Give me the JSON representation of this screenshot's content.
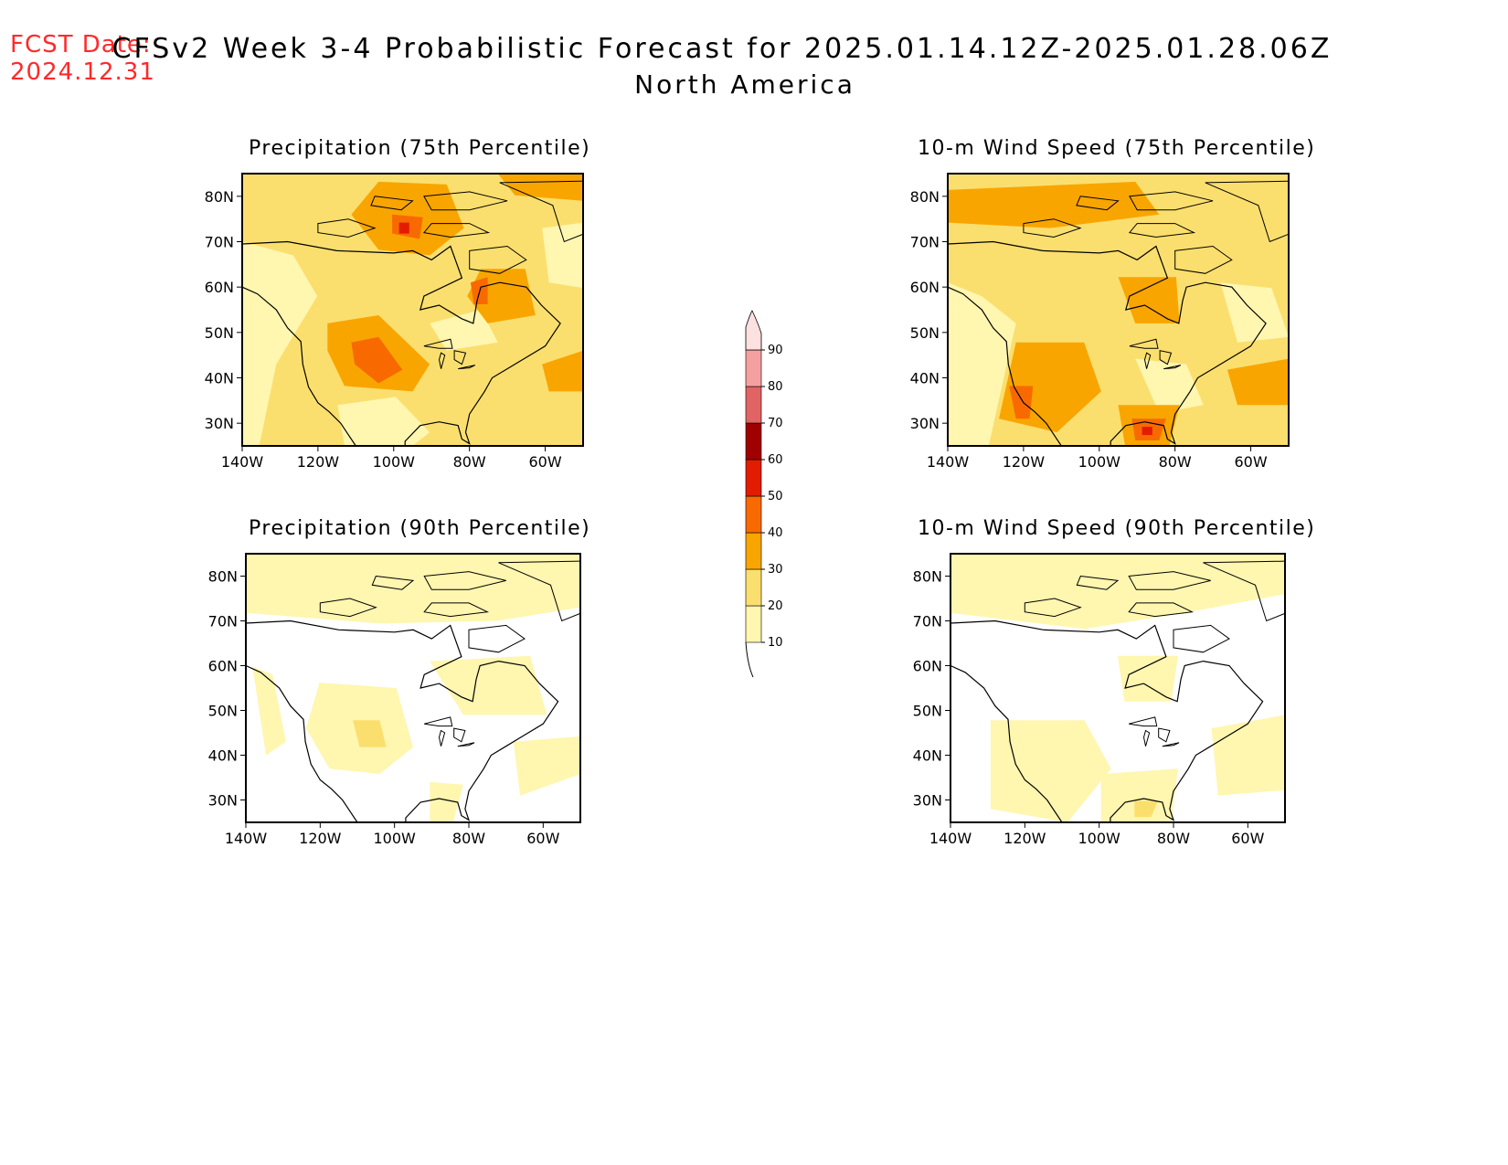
{
  "header": {
    "fcst_label": "FCST Date:",
    "fcst_date": "2024.12.31",
    "title": "CFSv2 Week 3-4 Probabilistic Forecast for 2025.01.14.12Z-2025.01.28.06Z",
    "subtitle": "North America"
  },
  "panels": [
    {
      "id": "p75",
      "title": "Precipitation (75th Percentile)"
    },
    {
      "id": "p90",
      "title": "Precipitation (90th Percentile)"
    },
    {
      "id": "w75",
      "title": "10-m Wind Speed (75th Percentile)"
    },
    {
      "id": "w90",
      "title": "10-m Wind Speed (90th Percentile)"
    }
  ],
  "map_axes": {
    "lon_labels": [
      "140W",
      "120W",
      "100W",
      "80W",
      "60W"
    ],
    "lon_values": [
      -140,
      -120,
      -100,
      -80,
      -60
    ],
    "lat_labels": [
      "30N",
      "40N",
      "50N",
      "60N",
      "70N",
      "80N"
    ],
    "lat_values": [
      30,
      40,
      50,
      60,
      70,
      80
    ],
    "lon_range": [
      -140,
      -50
    ],
    "lat_range": [
      25,
      85
    ]
  },
  "colorbar": {
    "levels": [
      "10",
      "20",
      "30",
      "40",
      "50",
      "60",
      "70",
      "80",
      "90"
    ],
    "colors": [
      "#fff6b0",
      "#fbdf6e",
      "#f9a500",
      "#f86a00",
      "#e21c00",
      "#a00000",
      "#e06464",
      "#f5a0a0",
      "#fde0e0"
    ]
  }
}
